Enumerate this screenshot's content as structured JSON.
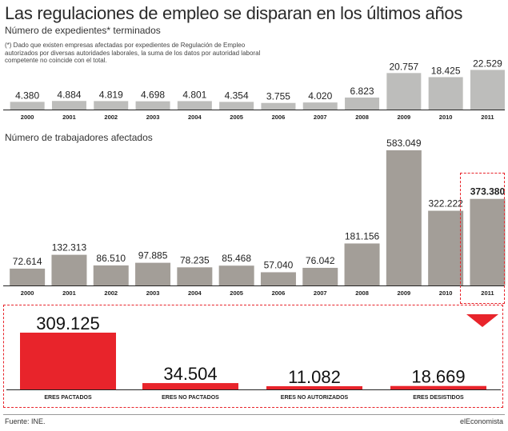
{
  "title": "Las regulaciones de empleo se disparan en los últimos años",
  "footnote": "(*) Dado que existen empresas afectadas por expedientes de Regulación de Empleo autorizados por diversas autoridades laborales, la suma de los datos por autoridad laboral competente no coincide con el total.",
  "source": "Fuente: INE.",
  "brand": "elEconomista",
  "colors": {
    "bar_light": "#bdbdbb",
    "bar_dark": "#a39e98",
    "accent": "#e8242b",
    "base_line": "#222222"
  },
  "chart_data": [
    {
      "type": "bar",
      "title": "Número de expedientes* terminados",
      "categories": [
        "2000",
        "2001",
        "2002",
        "2003",
        "2004",
        "2005",
        "2006",
        "2007",
        "2008",
        "2009",
        "2010",
        "2011"
      ],
      "values": [
        4380,
        4884,
        4819,
        4698,
        4801,
        4354,
        3755,
        4020,
        6823,
        20757,
        18425,
        22529
      ],
      "labels": [
        "4.380",
        "4.884",
        "4.819",
        "4.698",
        "4.801",
        "4.354",
        "3.755",
        "4.020",
        "6.823",
        "20.757",
        "18.425",
        "22.529"
      ],
      "ylim": [
        0,
        25000
      ]
    },
    {
      "type": "bar",
      "title": "Número de trabajadores afectados",
      "categories": [
        "2000",
        "2001",
        "2002",
        "2003",
        "2004",
        "2005",
        "2006",
        "2007",
        "2008",
        "2009",
        "2010",
        "2011"
      ],
      "values": [
        72614,
        132313,
        86510,
        97885,
        78235,
        85468,
        57040,
        76042,
        181156,
        583049,
        322222,
        373380
      ],
      "labels": [
        "72.614",
        "132.313",
        "86.510",
        "97.885",
        "78.235",
        "85.468",
        "57.040",
        "76.042",
        "181.156",
        "583.049",
        "322.222",
        "373.380"
      ],
      "highlight": "2011",
      "ylim": [
        0,
        600000
      ]
    },
    {
      "type": "bar",
      "title": "",
      "categories": [
        "ERES PACTADOS",
        "ERES NO PACTADOS",
        "ERES NO AUTORIZADOS",
        "ERES DESISTIDOS"
      ],
      "values": [
        309125,
        34504,
        11082,
        18669
      ],
      "labels": [
        "309.125",
        "34.504",
        "11.082",
        "18.669"
      ]
    }
  ]
}
